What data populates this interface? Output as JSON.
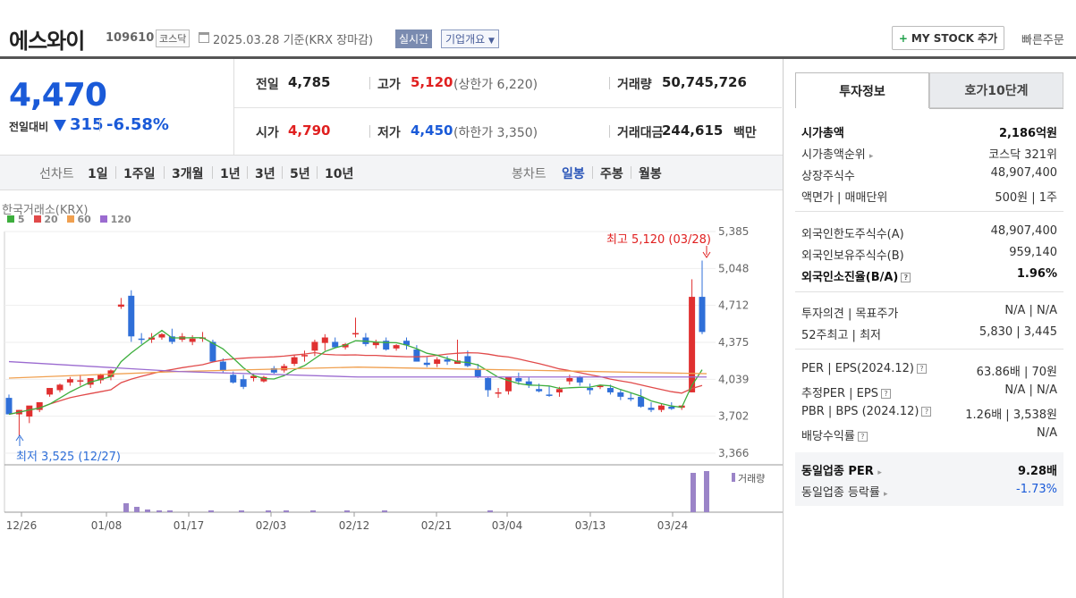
{
  "header": {
    "company": "에스와이",
    "code": "109610",
    "market": "코스닥",
    "date_text": "2025.03.28 기준(KRX 장마감)",
    "realtime_label": "실시간",
    "overview_label": "기업개요",
    "mystock_label": "MY STOCK 추가",
    "quick_order_label": "빠른주문"
  },
  "quote": {
    "price": "4,470",
    "change_label": "전일대비",
    "change_value": "315",
    "change_pct": "-6.58%",
    "prev_close_label": "전일",
    "prev_close": "4,785",
    "high_label": "고가",
    "high": "5,120",
    "upper_limit": "(상한가 6,220)",
    "volume_label": "거래량",
    "volume": "50,745,726",
    "open_label": "시가",
    "open": "4,790",
    "low_label": "저가",
    "low": "4,450",
    "lower_limit": "(하한가 3,350)",
    "amount_label": "거래대금",
    "amount": "244,615",
    "amount_unit": "백만"
  },
  "periods": {
    "label": "선차트",
    "items": [
      "1일",
      "1주일",
      "3개월",
      "1년",
      "3년",
      "5년",
      "10년"
    ],
    "candle_label": "봉차트",
    "candle_items": [
      "일봉",
      "주봉",
      "월봉"
    ],
    "candle_selected": "일봉"
  },
  "chart_meta": {
    "exchange": "한국거래소(KRX)",
    "ma": [
      {
        "label": "5",
        "color": "#3dae3d"
      },
      {
        "label": "20",
        "color": "#e14a4a"
      },
      {
        "label": "60",
        "color": "#f0a050"
      },
      {
        "label": "120",
        "color": "#9b6bd0"
      }
    ],
    "max_note": "최고 5,120 (03/28)",
    "min_note": "최저 3,525 (12/27)",
    "volume_label": "거래량"
  },
  "chart_data": {
    "type": "candlestick",
    "ylim": [
      3366,
      5385
    ],
    "y_ticks": [
      "5,385",
      "5,048",
      "4,712",
      "4,375",
      "4,039",
      "3,702",
      "3,366"
    ],
    "x_ticks": [
      "12/26",
      "01/08",
      "01/17",
      "02/03",
      "02/12",
      "02/21",
      "03/04",
      "03/13",
      "03/24"
    ],
    "up_color": "#e03030",
    "down_color": "#2f6fd8"
  },
  "side": {
    "tab_invest": "투자정보",
    "tab_ask": "호가10단계",
    "mktcap_label": "시가총액",
    "mktcap": "2,186억원",
    "mktcap_rank_label": "시가총액순위",
    "mktcap_rank": "코스닥 321위",
    "shares_label": "상장주식수",
    "shares": "48,907,400",
    "par_label": "액면가 | 매매단위",
    "par": "500원 | 1주",
    "foreign_limit_label": "외국인한도주식수(A)",
    "foreign_limit": "48,907,400",
    "foreign_hold_label": "외국인보유주식수(B)",
    "foreign_hold": "959,140",
    "foreign_ratio_label": "외국인소진율(B/A)",
    "foreign_ratio": "1.96%",
    "opinion_label": "투자의견 | 목표주가",
    "opinion": "N/A | N/A",
    "w52_label": "52주최고 | 최저",
    "w52": "5,830 | 3,445",
    "per_label": "PER | EPS(2024.12)",
    "per": "63.86배 | 70원",
    "est_per_label": "추정PER | EPS",
    "est_per": "N/A | N/A",
    "pbr_label": "PBR | BPS (2024.12)",
    "pbr": "1.26배 | 3,538원",
    "div_label": "배당수익률",
    "div": "N/A",
    "peer_per_label": "동일업종 PER",
    "peer_per": "9.28배",
    "peer_chg_label": "동일업종 등락률",
    "peer_chg": "-1.73%"
  }
}
